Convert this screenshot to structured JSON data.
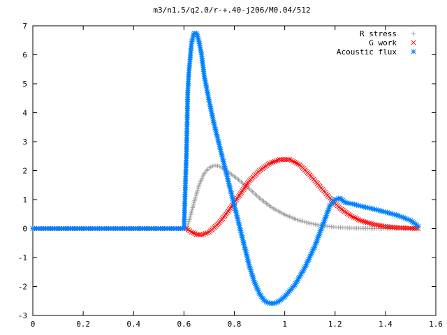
{
  "chart_data": {
    "type": "scatter",
    "title": "m3/n1.5/q2.0/r-+.40-j206/M0.04/512",
    "xlim": [
      0,
      1.6
    ],
    "ylim": [
      -3,
      7
    ],
    "x_ticks": [
      "0",
      "0.2",
      "0.4",
      "0.6",
      "0.8",
      "1",
      "1.2",
      "1.4",
      "1.6"
    ],
    "y_ticks": [
      "-3",
      "-2",
      "-1",
      "0",
      "1",
      "2",
      "3",
      "4",
      "5",
      "6",
      "7"
    ],
    "grid": false,
    "legend_position": "top-right",
    "series": [
      {
        "name": "R stress",
        "marker": "plus",
        "color": "#a0a0a0",
        "points": [
          [
            0.0,
            0
          ],
          [
            0.3,
            0
          ],
          [
            0.6,
            0
          ],
          [
            0.61,
            0
          ],
          [
            0.62,
            0.25
          ],
          [
            0.64,
            0.9
          ],
          [
            0.66,
            1.5
          ],
          [
            0.68,
            1.9
          ],
          [
            0.7,
            2.1
          ],
          [
            0.72,
            2.18
          ],
          [
            0.74,
            2.15
          ],
          [
            0.76,
            2.05
          ],
          [
            0.8,
            1.8
          ],
          [
            0.85,
            1.45
          ],
          [
            0.9,
            1.05
          ],
          [
            0.95,
            0.72
          ],
          [
            1.0,
            0.48
          ],
          [
            1.05,
            0.3
          ],
          [
            1.1,
            0.18
          ],
          [
            1.15,
            0.1
          ],
          [
            1.2,
            0.05
          ],
          [
            1.25,
            0.02
          ],
          [
            1.3,
            0.01
          ],
          [
            1.4,
            0
          ],
          [
            1.5,
            0
          ],
          [
            1.52,
            0
          ]
        ]
      },
      {
        "name": "G work",
        "marker": "cross",
        "color": "#ff0000",
        "points": [
          [
            0.0,
            0
          ],
          [
            0.3,
            0
          ],
          [
            0.6,
            0
          ],
          [
            0.61,
            0
          ],
          [
            0.63,
            -0.12
          ],
          [
            0.65,
            -0.2
          ],
          [
            0.67,
            -0.22
          ],
          [
            0.7,
            -0.12
          ],
          [
            0.74,
            0.2
          ],
          [
            0.78,
            0.65
          ],
          [
            0.82,
            1.15
          ],
          [
            0.86,
            1.65
          ],
          [
            0.9,
            2.0
          ],
          [
            0.94,
            2.25
          ],
          [
            0.98,
            2.38
          ],
          [
            1.02,
            2.38
          ],
          [
            1.06,
            2.2
          ],
          [
            1.1,
            1.85
          ],
          [
            1.14,
            1.45
          ],
          [
            1.18,
            1.05
          ],
          [
            1.22,
            0.7
          ],
          [
            1.26,
            0.45
          ],
          [
            1.3,
            0.28
          ],
          [
            1.35,
            0.15
          ],
          [
            1.4,
            0.07
          ],
          [
            1.45,
            0.03
          ],
          [
            1.5,
            0.01
          ],
          [
            1.53,
            0
          ]
        ]
      },
      {
        "name": "Acoustic flux",
        "marker": "star",
        "color": "#0080ff",
        "points": [
          [
            0.0,
            0
          ],
          [
            0.2,
            0
          ],
          [
            0.4,
            0
          ],
          [
            0.6,
            0
          ],
          [
            0.61,
            2.6
          ],
          [
            0.615,
            4.7
          ],
          [
            0.62,
            5.45
          ],
          [
            0.625,
            5.9
          ],
          [
            0.63,
            6.4
          ],
          [
            0.64,
            6.75
          ],
          [
            0.65,
            6.75
          ],
          [
            0.66,
            6.45
          ],
          [
            0.67,
            6.0
          ],
          [
            0.68,
            5.3
          ],
          [
            0.7,
            4.4
          ],
          [
            0.72,
            3.6
          ],
          [
            0.74,
            2.9
          ],
          [
            0.76,
            2.2
          ],
          [
            0.78,
            1.5
          ],
          [
            0.8,
            0.8
          ],
          [
            0.82,
            0.1
          ],
          [
            0.84,
            -0.6
          ],
          [
            0.86,
            -1.3
          ],
          [
            0.88,
            -1.85
          ],
          [
            0.9,
            -2.25
          ],
          [
            0.92,
            -2.5
          ],
          [
            0.94,
            -2.58
          ],
          [
            0.96,
            -2.58
          ],
          [
            0.98,
            -2.5
          ],
          [
            1.0,
            -2.35
          ],
          [
            1.04,
            -1.95
          ],
          [
            1.08,
            -1.35
          ],
          [
            1.12,
            -0.6
          ],
          [
            1.15,
            0.1
          ],
          [
            1.18,
            0.8
          ],
          [
            1.2,
            1.0
          ],
          [
            1.22,
            1.05
          ],
          [
            1.24,
            0.9
          ],
          [
            1.27,
            0.85
          ],
          [
            1.3,
            0.78
          ],
          [
            1.35,
            0.68
          ],
          [
            1.4,
            0.57
          ],
          [
            1.45,
            0.45
          ],
          [
            1.5,
            0.28
          ],
          [
            1.53,
            0.08
          ]
        ]
      }
    ]
  }
}
